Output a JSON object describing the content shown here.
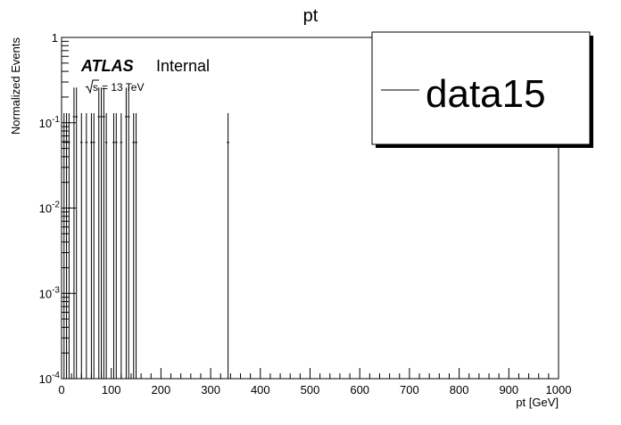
{
  "chart_data": {
    "type": "histogram",
    "title": "pt",
    "xlabel": "pt [GeV]",
    "ylabel": "Normalized Events",
    "xlim": [
      0,
      1000
    ],
    "ylim": [
      0.0001,
      1
    ],
    "y_scale": "log",
    "x_ticks": [
      "0",
      "100",
      "200",
      "300",
      "400",
      "500",
      "600",
      "700",
      "800",
      "900",
      "1000"
    ],
    "y_ticks": [
      {
        "base": "1",
        "exp": ""
      },
      {
        "base": "10",
        "exp": "-1"
      },
      {
        "base": "10",
        "exp": "-2"
      },
      {
        "base": "10",
        "exp": "-3"
      },
      {
        "base": "10",
        "exp": "-4"
      }
    ],
    "bin_width": 5,
    "series": [
      {
        "name": "data15",
        "color": "#000000",
        "bins": [
          {
            "x": 5,
            "y": 0.0588
          },
          {
            "x": 10,
            "y": 0.0588
          },
          {
            "x": 15,
            "y": 0.0588
          },
          {
            "x": 25,
            "y": 0.1176
          },
          {
            "x": 30,
            "y": 0.1176
          },
          {
            "x": 40,
            "y": 0.0588
          },
          {
            "x": 50,
            "y": 0.0588
          },
          {
            "x": 60,
            "y": 0.0588
          },
          {
            "x": 65,
            "y": 0.0588
          },
          {
            "x": 75,
            "y": 0.1176
          },
          {
            "x": 80,
            "y": 0.1176
          },
          {
            "x": 85,
            "y": 0.1176
          },
          {
            "x": 90,
            "y": 0.0588
          },
          {
            "x": 105,
            "y": 0.0588
          },
          {
            "x": 110,
            "y": 0.0588
          },
          {
            "x": 120,
            "y": 0.0588
          },
          {
            "x": 130,
            "y": 0.1176
          },
          {
            "x": 135,
            "y": 0.1176
          },
          {
            "x": 145,
            "y": 0.0588
          },
          {
            "x": 150,
            "y": 0.0588
          },
          {
            "x": 335,
            "y": 0.0588
          }
        ]
      }
    ],
    "legend_position": "top-right",
    "grid": false
  },
  "labels": {
    "atlas": "ATLAS",
    "internal": "Internal",
    "sqrt_s": "s",
    "energy": "= 13 TeV"
  }
}
